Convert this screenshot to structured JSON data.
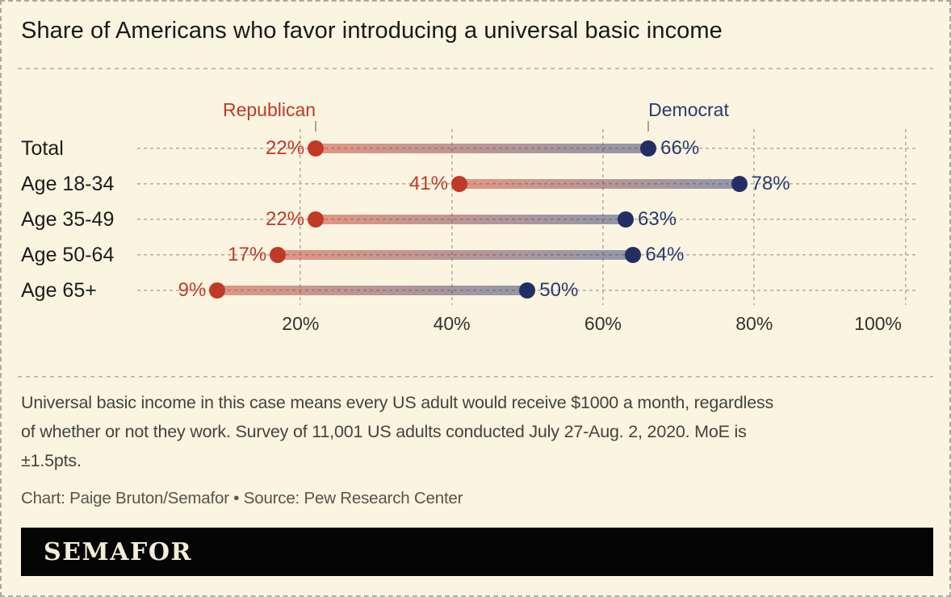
{
  "title": "Share of Americans who favor introducing a universal basic income",
  "chart_data": {
    "type": "dumbbell",
    "categories": [
      "Total",
      "Age 18-34",
      "Age 35-49",
      "Age 50-64",
      "Age 65+"
    ],
    "series": [
      {
        "name": "Republican",
        "values": [
          22,
          41,
          22,
          17,
          9
        ],
        "color": "#c13a27",
        "label_color": "#c13a27"
      },
      {
        "name": "Democrat",
        "values": [
          66,
          78,
          63,
          64,
          50
        ],
        "color": "#232f64",
        "label_color": "#2b3a70"
      }
    ],
    "x_ticks": [
      20,
      40,
      60,
      80,
      100
    ],
    "x_tick_labels": [
      "20%",
      "40%",
      "60%",
      "80%",
      "100%"
    ],
    "xlim": [
      0,
      105
    ],
    "value_suffix": "%",
    "grid": "dashed",
    "legend_position": "top",
    "bar_gradient": [
      "rgba(196,58,40,0.5)",
      "rgba(43,58,112,0.5)"
    ]
  },
  "legend": {
    "republican": "Republican",
    "democrat": "Democrat"
  },
  "footnote": "Universal basic income in this case means every US adult would receive $1000 a month, regardless\nof whether or not they work. Survey of 11,001 US adults conducted July 27-Aug. 2, 2020. MoE is\n±1.5pts.",
  "credit": "Chart: Paige Bruton/Semafor • Source: Pew Research Center",
  "logo": "SEMAFOR",
  "colors": {
    "background": "#faf4e1",
    "republican": "#c13a27",
    "democrat": "#232f64",
    "gridline": "#b5b1a3",
    "title_text": "#1a1a18",
    "footnote_text": "#45443c",
    "logo_bar": "#050505",
    "logo_text": "#f3edd6"
  }
}
